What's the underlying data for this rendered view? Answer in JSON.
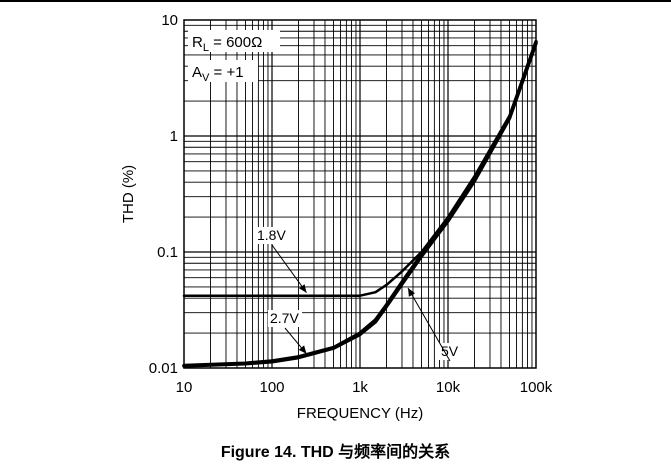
{
  "caption": "Figure 14. THD 与频率间的关系",
  "chart_data": {
    "type": "line",
    "title": "",
    "xlabel": "FREQUENCY (Hz)",
    "ylabel": "THD (%)",
    "x_scale": "log",
    "y_scale": "log",
    "xlim": [
      10,
      100000
    ],
    "ylim": [
      0.01,
      10
    ],
    "grid": true,
    "x_tick_labels": [
      "10",
      "100",
      "1k",
      "10k",
      "100k"
    ],
    "x_tick_values": [
      10,
      100,
      1000,
      10000,
      100000
    ],
    "y_tick_labels": [
      "0.01",
      "0.1",
      "1",
      "10"
    ],
    "y_tick_values": [
      0.01,
      0.1,
      1,
      10
    ],
    "conditions": {
      "load": {
        "prefix": "R",
        "sub": "L",
        "value": " = 600Ω"
      },
      "gain": {
        "prefix": "A",
        "sub": "V",
        "value": " = +1"
      }
    },
    "series": [
      {
        "name": "1.8V",
        "x": [
          10,
          100,
          1000,
          1500,
          2000,
          3000,
          5000,
          10000,
          20000,
          50000,
          100000
        ],
        "y": [
          0.042,
          0.042,
          0.042,
          0.045,
          0.052,
          0.068,
          0.1,
          0.2,
          0.45,
          1.5,
          6.5
        ]
      },
      {
        "name": "2.7V",
        "x": [
          10,
          50,
          100,
          200,
          500,
          1000,
          1500,
          2000,
          3000,
          5000,
          10000,
          20000,
          50000,
          100000
        ],
        "y": [
          0.0105,
          0.011,
          0.0115,
          0.0125,
          0.015,
          0.02,
          0.026,
          0.035,
          0.055,
          0.095,
          0.19,
          0.42,
          1.45,
          6.5
        ]
      },
      {
        "name": "5V",
        "x": [
          10,
          50,
          100,
          200,
          500,
          1000,
          1500,
          2000,
          3000,
          5000,
          10000,
          20000,
          50000,
          100000
        ],
        "y": [
          0.0104,
          0.0109,
          0.0113,
          0.0123,
          0.0148,
          0.0195,
          0.025,
          0.034,
          0.053,
          0.092,
          0.185,
          0.41,
          1.42,
          6.3
        ]
      }
    ],
    "annotations": [
      {
        "text": "1.8V",
        "series": "1.8V"
      },
      {
        "text": "2.7V",
        "series": "2.7V"
      },
      {
        "text": "5V",
        "series": "5V"
      }
    ]
  }
}
